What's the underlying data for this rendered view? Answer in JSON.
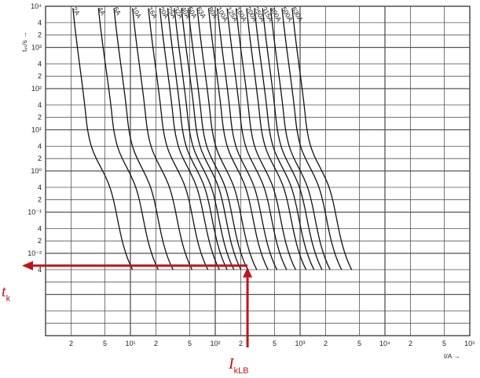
{
  "chart_data": {
    "type": "line",
    "title": "",
    "x_scale": "log",
    "y_scale": "log",
    "xlim": [
      1,
      100000
    ],
    "ylim": [
      0.0001,
      10000
    ],
    "xlabel": "I/A →",
    "ylabel": "tᵥₛ/s →",
    "grid": true,
    "x_tick_labels": [
      {
        "v": 2,
        "t": "2"
      },
      {
        "v": 5,
        "t": "5"
      },
      {
        "v": 10,
        "t": "10¹"
      },
      {
        "v": 20,
        "t": "2"
      },
      {
        "v": 50,
        "t": "5"
      },
      {
        "v": 100,
        "t": "10²"
      },
      {
        "v": 200,
        "t": "2"
      },
      {
        "v": 500,
        "t": "5"
      },
      {
        "v": 1000,
        "t": "10³"
      },
      {
        "v": 2000,
        "t": "2"
      },
      {
        "v": 5000,
        "t": "5"
      },
      {
        "v": 10000,
        "t": "10⁴"
      },
      {
        "v": 20000,
        "t": "2"
      },
      {
        "v": 50000,
        "t": "5"
      },
      {
        "v": 100000,
        "t": "10⁵"
      }
    ],
    "y_tick_labels": [
      {
        "v": 10000,
        "t": "10⁴"
      },
      {
        "v": 4000,
        "t": "4"
      },
      {
        "v": 2000,
        "t": "2"
      },
      {
        "v": 1000,
        "t": "10³"
      },
      {
        "v": 400,
        "t": "4"
      },
      {
        "v": 200,
        "t": "2"
      },
      {
        "v": 100,
        "t": "10²"
      },
      {
        "v": 40,
        "t": "4"
      },
      {
        "v": 20,
        "t": "2"
      },
      {
        "v": 10,
        "t": "10¹"
      },
      {
        "v": 4,
        "t": "4"
      },
      {
        "v": 2,
        "t": "2"
      },
      {
        "v": 1,
        "t": "10⁰"
      },
      {
        "v": 0.4,
        "t": "4"
      },
      {
        "v": 0.2,
        "t": "2"
      },
      {
        "v": 0.1,
        "t": "10⁻¹"
      },
      {
        "v": 0.04,
        "t": "4"
      },
      {
        "v": 0.02,
        "t": "2"
      },
      {
        "v": 0.01,
        "t": "10⁻²"
      },
      {
        "v": 0.004,
        "t": "4"
      }
    ],
    "series": [
      {
        "name": "2A",
        "points": [
          [
            2.1,
            9000
          ],
          [
            3.0,
            20
          ],
          [
            5.5,
            0.5
          ],
          [
            10.6,
            0.004
          ]
        ]
      },
      {
        "name": "4A",
        "points": [
          [
            4.2,
            9000
          ],
          [
            6.1,
            20
          ],
          [
            11.1,
            0.5
          ],
          [
            21.3,
            0.004
          ]
        ]
      },
      {
        "name": "6A",
        "points": [
          [
            6.4,
            9000
          ],
          [
            9.2,
            20
          ],
          [
            16.6,
            0.5
          ],
          [
            31.8,
            0.004
          ]
        ]
      },
      {
        "name": "10A",
        "points": [
          [
            10.6,
            9000
          ],
          [
            15.2,
            20
          ],
          [
            27.7,
            0.5
          ],
          [
            53.3,
            0.004
          ]
        ]
      },
      {
        "name": "16A",
        "points": [
          [
            16.3,
            9000
          ],
          [
            23.4,
            20
          ],
          [
            42.6,
            0.5
          ],
          [
            81.8,
            0.004
          ]
        ]
      },
      {
        "name": "20A",
        "points": [
          [
            22.2,
            9000
          ],
          [
            31.9,
            20
          ],
          [
            58.1,
            0.5
          ],
          [
            112,
            0.004
          ]
        ]
      },
      {
        "name": "25A",
        "points": [
          [
            27.5,
            9000
          ],
          [
            39.4,
            20
          ],
          [
            71.9,
            0.5
          ],
          [
            138,
            0.004
          ]
        ]
      },
      {
        "name": "32A",
        "points": [
          [
            33.0,
            9000
          ],
          [
            47.4,
            20
          ],
          [
            86.3,
            0.5
          ],
          [
            166,
            0.004
          ]
        ]
      },
      {
        "name": "40A",
        "points": [
          [
            40.0,
            9000
          ],
          [
            57.4,
            20
          ],
          [
            105,
            0.5
          ],
          [
            201,
            0.004
          ]
        ]
      },
      {
        "name": "50A",
        "points": [
          [
            48.0,
            9000
          ],
          [
            68.9,
            20
          ],
          [
            126,
            0.5
          ],
          [
            241,
            0.004
          ]
        ]
      },
      {
        "name": "63A",
        "points": [
          [
            61.3,
            9000
          ],
          [
            88.0,
            20
          ],
          [
            160,
            0.5
          ],
          [
            308,
            0.004
          ]
        ]
      },
      {
        "name": "80A",
        "points": [
          [
            83.4,
            9000
          ],
          [
            120,
            20
          ],
          [
            218,
            0.5
          ],
          [
            419,
            0.004
          ]
        ]
      },
      {
        "name": "100A",
        "points": [
          [
            106,
            9000
          ],
          [
            152,
            20
          ],
          [
            277,
            0.5
          ],
          [
            533,
            0.004
          ]
        ]
      },
      {
        "name": "125A",
        "points": [
          [
            138,
            9000
          ],
          [
            198,
            20
          ],
          [
            361,
            0.5
          ],
          [
            693,
            0.004
          ]
        ]
      },
      {
        "name": "160A",
        "points": [
          [
            176,
            9000
          ],
          [
            253,
            20
          ],
          [
            461,
            0.5
          ],
          [
            885,
            0.004
          ]
        ]
      },
      {
        "name": "200A",
        "points": [
          [
            234,
            9000
          ],
          [
            336,
            20
          ],
          [
            612,
            0.5
          ],
          [
            1176,
            0.004
          ]
        ]
      },
      {
        "name": "250A",
        "points": [
          [
            290,
            9000
          ],
          [
            416,
            20
          ],
          [
            758,
            0.5
          ],
          [
            1457,
            0.004
          ]
        ]
      },
      {
        "name": "315A",
        "points": [
          [
            361,
            9000
          ],
          [
            518,
            20
          ],
          [
            944,
            0.5
          ],
          [
            1814,
            0.004
          ]
        ]
      },
      {
        "name": "400A",
        "points": [
          [
            450,
            9000
          ],
          [
            646,
            20
          ],
          [
            1176,
            0.5
          ],
          [
            2260,
            0.004
          ]
        ]
      },
      {
        "name": "500A",
        "points": [
          [
            613,
            9000
          ],
          [
            880,
            20
          ],
          [
            1603,
            0.5
          ],
          [
            3080,
            0.004
          ]
        ]
      },
      {
        "name": "630A",
        "points": [
          [
            806,
            9000
          ],
          [
            1157,
            20
          ],
          [
            2107,
            0.5
          ],
          [
            4049,
            0.004
          ]
        ]
      }
    ],
    "annotations": {
      "t_label": "t",
      "t_sub": "k",
      "i_label": "I",
      "i_sub": "kLB",
      "ikLB_value": 240,
      "tk_value": 0.005,
      "color": "#c0141e"
    }
  }
}
